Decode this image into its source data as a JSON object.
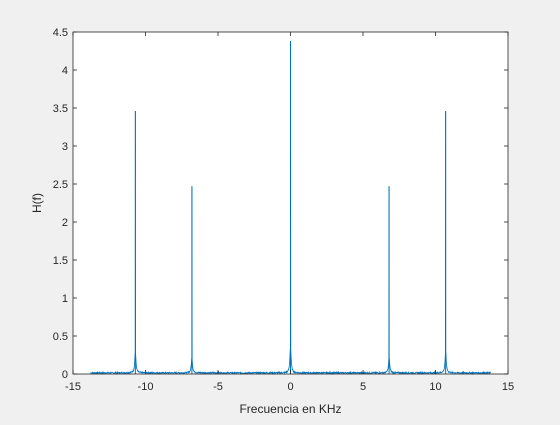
{
  "chart_data": {
    "type": "line",
    "xlabel": "Frecuencia en KHz",
    "ylabel": "H(f)",
    "xlim": [
      -15,
      15
    ],
    "ylim": [
      0,
      4.5
    ],
    "xticks": [
      -15,
      -10,
      -5,
      0,
      5,
      10,
      15
    ],
    "xtick_labels": [
      "-15",
      "-10",
      "-5",
      "0",
      "5",
      "10",
      "15"
    ],
    "yticks": [
      0,
      0.5,
      1,
      1.5,
      2,
      2.5,
      3,
      3.5,
      4,
      4.5
    ],
    "ytick_labels": [
      "0",
      "0.5",
      "1",
      "1.5",
      "2",
      "2.5",
      "3",
      "3.5",
      "4",
      "4.5"
    ],
    "grid": false,
    "line_color": "#0072bd",
    "x_range_of_data": [
      -13.8,
      13.8
    ],
    "noise_floor": 0.02,
    "peaks": [
      {
        "x": -10.7,
        "y": 3.46
      },
      {
        "x": -6.8,
        "y": 2.47
      },
      {
        "x": 0,
        "y": 4.38
      },
      {
        "x": 6.8,
        "y": 2.47
      },
      {
        "x": 10.7,
        "y": 3.46
      }
    ]
  }
}
